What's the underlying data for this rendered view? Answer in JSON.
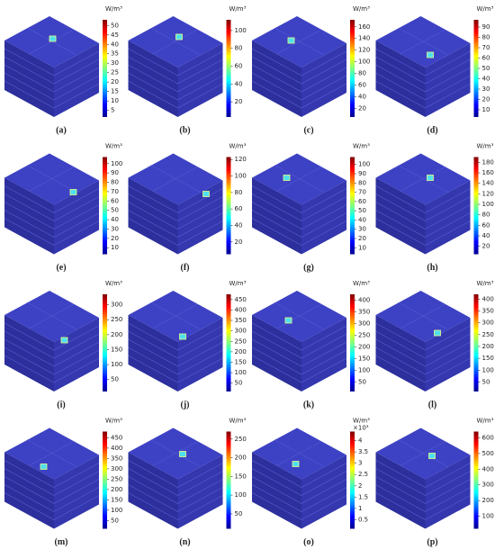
{
  "panels": [
    {
      "label": "(a)",
      "unit": "W/m³",
      "ticks": [
        5,
        10,
        15,
        20,
        25,
        30,
        35,
        40,
        45,
        50
      ],
      "range": [
        1.5,
        53
      ]
    },
    {
      "label": "(b)",
      "unit": "W/m³",
      "ticks": [
        20,
        40,
        60,
        80,
        100
      ],
      "range": [
        3,
        112
      ]
    },
    {
      "label": "(c)",
      "unit": "W/m³",
      "ticks": [
        20,
        40,
        60,
        80,
        100,
        120,
        140,
        160
      ],
      "range": [
        5,
        172
      ]
    },
    {
      "label": "(d)",
      "unit": "W/m³",
      "ticks": [
        10,
        20,
        30,
        40,
        50,
        60,
        70,
        80,
        90
      ],
      "range": [
        3,
        97
      ]
    },
    {
      "label": "(e)",
      "unit": "W/m³",
      "ticks": [
        10,
        20,
        30,
        40,
        50,
        60,
        70,
        80,
        90,
        100
      ],
      "range": [
        3,
        107
      ]
    },
    {
      "label": "(f)",
      "unit": "W/m³",
      "ticks": [
        20,
        40,
        60,
        80,
        100,
        120
      ],
      "range": [
        5,
        123
      ]
    },
    {
      "label": "(g)",
      "unit": "W/m³",
      "ticks": [
        10,
        20,
        30,
        40,
        50,
        60,
        70,
        80,
        90,
        100
      ],
      "range": [
        3,
        108
      ]
    },
    {
      "label": "(h)",
      "unit": "W/m³",
      "ticks": [
        20,
        40,
        60,
        80,
        100,
        120,
        140,
        160,
        180
      ],
      "range": [
        5,
        190
      ]
    },
    {
      "label": "(i)",
      "unit": "W/m³",
      "ticks": [
        50,
        100,
        150,
        200,
        250,
        300
      ],
      "range": [
        10,
        335
      ]
    },
    {
      "label": "(j)",
      "unit": "W/m³",
      "ticks": [
        50,
        100,
        150,
        200,
        250,
        300,
        350,
        400,
        450
      ],
      "range": [
        10,
        475
      ]
    },
    {
      "label": "(k)",
      "unit": "W/m³",
      "ticks": [
        50,
        100,
        150,
        200,
        250,
        300,
        350,
        400
      ],
      "range": [
        10,
        425
      ]
    },
    {
      "label": "(l)",
      "unit": "W/m³",
      "ticks": [
        50,
        100,
        150,
        200,
        250,
        300,
        350,
        400
      ],
      "range": [
        10,
        420
      ]
    },
    {
      "label": "(m)",
      "unit": "W/m³",
      "ticks": [
        50,
        100,
        150,
        200,
        250,
        300,
        350,
        400,
        450
      ],
      "range": [
        10,
        480
      ]
    },
    {
      "label": "(n)",
      "unit": "W/m³",
      "ticks": [
        50,
        100,
        150,
        200,
        250
      ],
      "range": [
        10,
        270
      ]
    },
    {
      "label": "(o)",
      "unit": "W/m³",
      "multiplier": "×10³",
      "ticks": [
        0.5,
        1,
        1.5,
        2,
        2.5,
        3,
        3.5,
        4
      ],
      "range": [
        0.1,
        4.4
      ]
    },
    {
      "label": "(p)",
      "unit": "W/m³",
      "ticks": [
        100,
        200,
        300,
        400,
        500,
        600
      ],
      "range": [
        20,
        640
      ]
    }
  ]
}
